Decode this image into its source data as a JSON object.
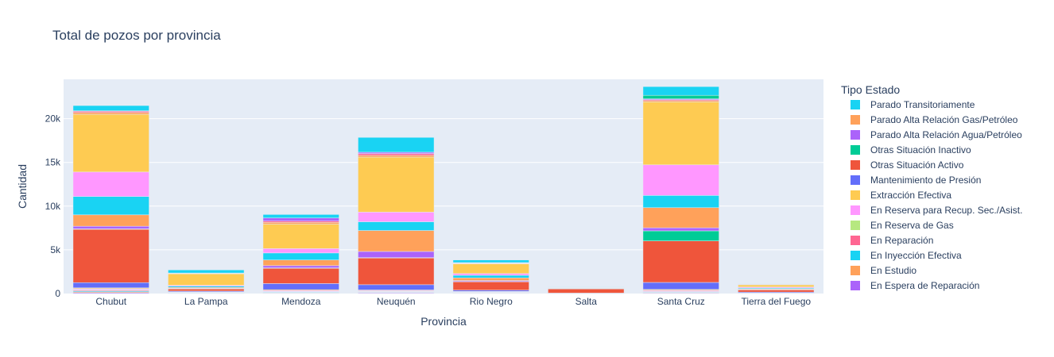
{
  "chart_data": {
    "type": "bar",
    "barmode": "stack",
    "title": "Total de pozos por provincia",
    "xlabel": "Provincia",
    "ylabel": "Cantidad",
    "ylim": [
      0,
      24500
    ],
    "yticks": [
      0,
      5000,
      10000,
      15000,
      20000
    ],
    "ytick_labels": [
      "0",
      "5k",
      "10k",
      "15k",
      "20k"
    ],
    "grid": true,
    "legend_position": "right",
    "legend_title": "Tipo Estado",
    "categories": [
      "Chubut",
      "La Pampa",
      "Mendoza",
      "Neuquén",
      "Rio Negro",
      "Salta",
      "Santa Cruz",
      "Tierra del Fuego"
    ],
    "series": [
      {
        "name": "En Espera de Reparación",
        "color": "#ab63fa",
        "values": [
          100,
          20,
          50,
          70,
          30,
          5,
          60,
          10
        ]
      },
      {
        "name": "En Estudio",
        "color": "#FFA15A",
        "values": [
          100,
          20,
          50,
          50,
          30,
          5,
          60,
          10
        ]
      },
      {
        "name": "En Inyección Efectiva",
        "color": "#19d3f3",
        "values": [
          100,
          20,
          60,
          50,
          30,
          5,
          60,
          10
        ]
      },
      {
        "name": "En Reparación",
        "color": "#FF6692",
        "values": [
          100,
          20,
          50,
          50,
          30,
          5,
          60,
          10
        ]
      },
      {
        "name": "En Reserva de Gas",
        "color": "#B6E880",
        "values": [
          50,
          20,
          30,
          30,
          20,
          5,
          30,
          10
        ]
      },
      {
        "name": "En Reserva para Recup. Sec./Asist.",
        "color": "#FF97FF",
        "values": [
          100,
          40,
          100,
          80,
          50,
          5,
          100,
          10
        ]
      },
      {
        "name": "Extracción Efectiva",
        "color": "#FECB52",
        "values": [
          100,
          40,
          100,
          80,
          50,
          5,
          100,
          10
        ]
      },
      {
        "name": "Mantenimiento de Presión",
        "color": "#636efa",
        "values": [
          600,
          100,
          700,
          600,
          150,
          20,
          800,
          100
        ]
      },
      {
        "name": "Otras Situación Activo",
        "color": "#EF553B",
        "values": [
          6100,
          250,
          1750,
          3050,
          950,
          480,
          4750,
          250
        ]
      },
      {
        "name": "Otras Situación Inactivo",
        "color": "#00cc96",
        "values": [
          50,
          20,
          50,
          50,
          50,
          10,
          1150,
          20
        ]
      },
      {
        "name": "Parado Alta Relación Agua/Petróleo",
        "color": "#ab63fa",
        "values": [
          300,
          50,
          250,
          700,
          100,
          10,
          350,
          30
        ]
      },
      {
        "name": "Parado Alta Relación Gas/Petróleo",
        "color": "#FFA15A",
        "values": [
          1300,
          100,
          650,
          2400,
          300,
          30,
          2300,
          80
        ]
      },
      {
        "name": "Parado Transitoriamente",
        "color": "#19d3f3",
        "values": [
          2100,
          150,
          800,
          1000,
          300,
          20,
          1400,
          100
        ]
      },
      {
        "name": "En Reserva para Recup. Sec./Asist.",
        "color": "#FF97FF",
        "values": [
          2800,
          100,
          500,
          1100,
          200,
          20,
          3500,
          100
        ]
      },
      {
        "name": "Extracción Efectiva",
        "color": "#FECB52",
        "values": [
          6600,
          1300,
          2800,
          6300,
          1100,
          50,
          7200,
          250
        ]
      },
      {
        "name": "En Estudio",
        "color": "#FFA15A",
        "values": [
          200,
          50,
          200,
          200,
          60,
          10,
          150,
          50
        ]
      },
      {
        "name": "En Reparación",
        "color": "#FF6692",
        "values": [
          150,
          30,
          150,
          200,
          50,
          10,
          100,
          30
        ]
      },
      {
        "name": "Parado Alta Relación Agua/Petróleo",
        "color": "#ab63fa",
        "values": [
          50,
          20,
          350,
          150,
          40,
          10,
          100,
          20
        ]
      },
      {
        "name": "Otras Situación Inactivo",
        "color": "#00cc96",
        "values": [
          0,
          0,
          0,
          0,
          0,
          0,
          400,
          0
        ]
      },
      {
        "name": "Parado Transitoriamente",
        "color": "#19d3f3",
        "values": [
          600,
          350,
          400,
          1700,
          300,
          50,
          1000,
          40
        ]
      }
    ],
    "legend": [
      {
        "name": "Parado Transitoriamente",
        "color": "#19d3f3"
      },
      {
        "name": "Parado Alta Relación Gas/Petróleo",
        "color": "#FFA15A"
      },
      {
        "name": "Parado Alta Relación Agua/Petróleo",
        "color": "#ab63fa"
      },
      {
        "name": "Otras Situación Inactivo",
        "color": "#00cc96"
      },
      {
        "name": "Otras Situación Activo",
        "color": "#EF553B"
      },
      {
        "name": "Mantenimiento de Presión",
        "color": "#636efa"
      },
      {
        "name": "Extracción Efectiva",
        "color": "#FECB52"
      },
      {
        "name": "En Reserva para Recup. Sec./Asist.",
        "color": "#FF97FF"
      },
      {
        "name": "En Reserva de Gas",
        "color": "#B6E880"
      },
      {
        "name": "En Reparación",
        "color": "#FF6692"
      },
      {
        "name": "En Inyección Efectiva",
        "color": "#19d3f3"
      },
      {
        "name": "En Estudio",
        "color": "#FFA15A"
      },
      {
        "name": "En Espera de Reparación",
        "color": "#ab63fa"
      }
    ]
  }
}
